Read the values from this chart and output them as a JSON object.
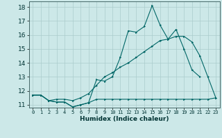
{
  "xlabel": "Humidex (Indice chaleur)",
  "bg_color": "#cce8e8",
  "grid_color": "#aacccc",
  "line_color": "#006666",
  "xlim": [
    -0.5,
    23.5
  ],
  "ylim": [
    10.8,
    18.4
  ],
  "yticks": [
    11,
    12,
    13,
    14,
    15,
    16,
    17,
    18
  ],
  "xticks": [
    0,
    1,
    2,
    3,
    4,
    5,
    6,
    7,
    8,
    9,
    10,
    11,
    12,
    13,
    14,
    15,
    16,
    17,
    18,
    19,
    20,
    21,
    22,
    23
  ],
  "line1_x": [
    0,
    1,
    2,
    3,
    4,
    5,
    6,
    7,
    8,
    9,
    10,
    11,
    12,
    13,
    14,
    15,
    16,
    17,
    18,
    19,
    20,
    21,
    22,
    23
  ],
  "line1_y": [
    11.7,
    11.7,
    11.3,
    11.2,
    11.2,
    10.85,
    11.0,
    11.15,
    11.4,
    11.4,
    11.4,
    11.4,
    11.4,
    11.4,
    11.4,
    11.4,
    11.4,
    11.4,
    11.4,
    11.4,
    11.4,
    11.4,
    11.4,
    11.5
  ],
  "line2_x": [
    0,
    1,
    2,
    3,
    4,
    5,
    6,
    7,
    8,
    9,
    10,
    11,
    12,
    13,
    14,
    15,
    16,
    17,
    18,
    19,
    20,
    21
  ],
  "line2_y": [
    11.7,
    11.7,
    11.3,
    11.2,
    11.2,
    10.85,
    11.0,
    11.15,
    12.8,
    12.7,
    13.0,
    14.4,
    16.3,
    16.2,
    16.6,
    18.1,
    16.7,
    15.7,
    16.4,
    15.0,
    13.5,
    13.0
  ],
  "line3_x": [
    0,
    1,
    2,
    3,
    4,
    5,
    6,
    7,
    8,
    9,
    10,
    11,
    12,
    13,
    14,
    15,
    16,
    17,
    18,
    19,
    20,
    21,
    22,
    23
  ],
  "line3_y": [
    11.7,
    11.7,
    11.3,
    11.4,
    11.4,
    11.3,
    11.5,
    11.8,
    12.4,
    13.0,
    13.3,
    13.7,
    14.0,
    14.4,
    14.8,
    15.2,
    15.6,
    15.7,
    15.9,
    15.9,
    15.5,
    14.5,
    13.0,
    11.5
  ]
}
